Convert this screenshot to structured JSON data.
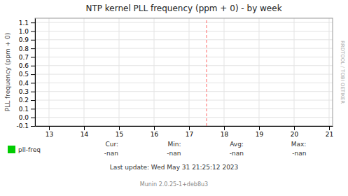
{
  "chart_data": {
    "type": "line",
    "title": "NTP kernel PLL frequency (ppm + 0) - by week",
    "y_label": "PLL frequency (ppm + 0)",
    "xlim": [
      12.6,
      21.1
    ],
    "ylim": [
      -0.1,
      1.15
    ],
    "xticks": [
      13,
      14,
      15,
      16,
      17,
      18,
      19,
      20,
      21
    ],
    "yticks": [
      -0.1,
      {
        "value": 0.0,
        "label": "0.0"
      },
      0.1,
      0.2,
      0.3,
      0.4,
      0.5,
      0.6,
      0.7,
      0.8,
      0.9,
      {
        "value": 1.0,
        "label": "1.0"
      },
      1.1
    ],
    "grid": true,
    "legend": "bottom",
    "x": [],
    "series": [
      {
        "name": "pll-freq",
        "color": "#00cc00",
        "values": []
      }
    ],
    "vline": {
      "x": 17.5,
      "color": "#ff6666",
      "line_style": "dashed"
    },
    "stats": [
      {
        "label": "Cur:",
        "text": "-nan"
      },
      {
        "label": "Min:",
        "text": "-nan"
      },
      {
        "label": "Avg:",
        "text": "-nan"
      },
      {
        "label": "Max:",
        "text": "-nan"
      }
    ],
    "annotations": [
      "Last update: Wed May 31 21:25:12 2023",
      "Munin 2.0.25-1+deb8u3",
      "RRDTOOL / TOBI OETIKER"
    ]
  }
}
